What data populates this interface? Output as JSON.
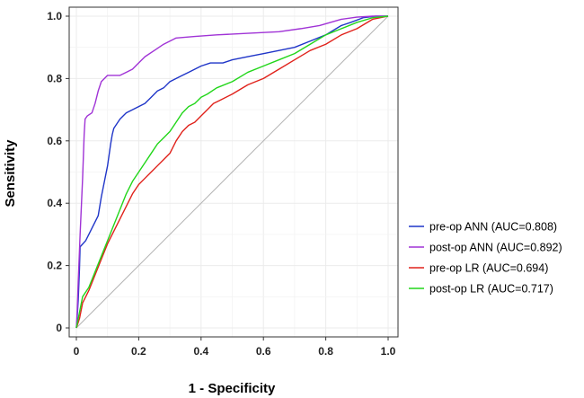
{
  "chart_data": {
    "type": "line",
    "title": "",
    "xlabel": "1 - Specificity",
    "ylabel": "Sensitivity",
    "xlim": [
      0,
      1
    ],
    "ylim": [
      0,
      1
    ],
    "x_ticks": [
      "0",
      "0.2",
      "0.4",
      "0.6",
      "0.8",
      "1.0"
    ],
    "y_ticks": [
      "0",
      "0.2",
      "0.4",
      "0.6",
      "0.8",
      "1.0"
    ],
    "grid": true,
    "legend_position": "right",
    "reference_line": {
      "x": [
        0,
        1
      ],
      "y": [
        0,
        1
      ],
      "color": "#b3b3b3"
    },
    "series": [
      {
        "name": "pre-op ANN (AUC=0.808)",
        "color": "#1f35c8",
        "points": [
          [
            0,
            0
          ],
          [
            0.003,
            0.04
          ],
          [
            0.006,
            0.09
          ],
          [
            0.01,
            0.19
          ],
          [
            0.012,
            0.26
          ],
          [
            0.03,
            0.28
          ],
          [
            0.05,
            0.32
          ],
          [
            0.07,
            0.36
          ],
          [
            0.08,
            0.42
          ],
          [
            0.09,
            0.47
          ],
          [
            0.1,
            0.52
          ],
          [
            0.11,
            0.59
          ],
          [
            0.115,
            0.62
          ],
          [
            0.12,
            0.64
          ],
          [
            0.14,
            0.67
          ],
          [
            0.16,
            0.69
          ],
          [
            0.18,
            0.7
          ],
          [
            0.2,
            0.71
          ],
          [
            0.22,
            0.72
          ],
          [
            0.24,
            0.74
          ],
          [
            0.26,
            0.76
          ],
          [
            0.28,
            0.77
          ],
          [
            0.3,
            0.79
          ],
          [
            0.32,
            0.8
          ],
          [
            0.34,
            0.81
          ],
          [
            0.36,
            0.82
          ],
          [
            0.38,
            0.83
          ],
          [
            0.4,
            0.84
          ],
          [
            0.43,
            0.85
          ],
          [
            0.47,
            0.85
          ],
          [
            0.5,
            0.86
          ],
          [
            0.55,
            0.87
          ],
          [
            0.6,
            0.88
          ],
          [
            0.65,
            0.89
          ],
          [
            0.7,
            0.9
          ],
          [
            0.75,
            0.92
          ],
          [
            0.8,
            0.94
          ],
          [
            0.85,
            0.97
          ],
          [
            0.88,
            0.98
          ],
          [
            0.92,
            0.995
          ],
          [
            0.96,
            1.0
          ],
          [
            1.0,
            1.0
          ]
        ]
      },
      {
        "name": "post-op ANN (AUC=0.892)",
        "color": "#a033d6",
        "points": [
          [
            0,
            0
          ],
          [
            0.003,
            0.06
          ],
          [
            0.006,
            0.15
          ],
          [
            0.01,
            0.25
          ],
          [
            0.012,
            0.3
          ],
          [
            0.02,
            0.48
          ],
          [
            0.025,
            0.62
          ],
          [
            0.028,
            0.67
          ],
          [
            0.035,
            0.68
          ],
          [
            0.05,
            0.69
          ],
          [
            0.06,
            0.72
          ],
          [
            0.07,
            0.76
          ],
          [
            0.08,
            0.79
          ],
          [
            0.09,
            0.8
          ],
          [
            0.1,
            0.81
          ],
          [
            0.14,
            0.81
          ],
          [
            0.16,
            0.82
          ],
          [
            0.18,
            0.83
          ],
          [
            0.2,
            0.85
          ],
          [
            0.22,
            0.87
          ],
          [
            0.25,
            0.89
          ],
          [
            0.28,
            0.91
          ],
          [
            0.32,
            0.93
          ],
          [
            0.38,
            0.935
          ],
          [
            0.45,
            0.94
          ],
          [
            0.55,
            0.945
          ],
          [
            0.65,
            0.95
          ],
          [
            0.72,
            0.96
          ],
          [
            0.78,
            0.97
          ],
          [
            0.85,
            0.99
          ],
          [
            0.9,
            0.997
          ],
          [
            0.95,
            1.0
          ],
          [
            1.0,
            1.0
          ]
        ]
      },
      {
        "name": "pre-op LR (AUC=0.694)",
        "color": "#e0221b",
        "points": [
          [
            0,
            0
          ],
          [
            0.01,
            0.03
          ],
          [
            0.02,
            0.08
          ],
          [
            0.04,
            0.12
          ],
          [
            0.06,
            0.17
          ],
          [
            0.08,
            0.22
          ],
          [
            0.1,
            0.27
          ],
          [
            0.12,
            0.31
          ],
          [
            0.14,
            0.35
          ],
          [
            0.16,
            0.39
          ],
          [
            0.18,
            0.43
          ],
          [
            0.2,
            0.46
          ],
          [
            0.22,
            0.48
          ],
          [
            0.24,
            0.5
          ],
          [
            0.26,
            0.52
          ],
          [
            0.28,
            0.54
          ],
          [
            0.3,
            0.56
          ],
          [
            0.32,
            0.6
          ],
          [
            0.34,
            0.63
          ],
          [
            0.36,
            0.65
          ],
          [
            0.38,
            0.66
          ],
          [
            0.4,
            0.68
          ],
          [
            0.42,
            0.7
          ],
          [
            0.44,
            0.72
          ],
          [
            0.46,
            0.73
          ],
          [
            0.5,
            0.75
          ],
          [
            0.55,
            0.78
          ],
          [
            0.6,
            0.8
          ],
          [
            0.65,
            0.83
          ],
          [
            0.7,
            0.86
          ],
          [
            0.75,
            0.89
          ],
          [
            0.8,
            0.91
          ],
          [
            0.85,
            0.94
          ],
          [
            0.9,
            0.96
          ],
          [
            0.95,
            0.99
          ],
          [
            1.0,
            1.0
          ]
        ]
      },
      {
        "name": "post-op LR (AUC=0.717)",
        "color": "#22d61a",
        "points": [
          [
            0,
            0
          ],
          [
            0.01,
            0.05
          ],
          [
            0.02,
            0.1
          ],
          [
            0.04,
            0.13
          ],
          [
            0.06,
            0.18
          ],
          [
            0.08,
            0.23
          ],
          [
            0.1,
            0.28
          ],
          [
            0.12,
            0.33
          ],
          [
            0.14,
            0.38
          ],
          [
            0.16,
            0.43
          ],
          [
            0.18,
            0.47
          ],
          [
            0.2,
            0.5
          ],
          [
            0.22,
            0.53
          ],
          [
            0.24,
            0.56
          ],
          [
            0.26,
            0.59
          ],
          [
            0.28,
            0.61
          ],
          [
            0.3,
            0.63
          ],
          [
            0.32,
            0.66
          ],
          [
            0.34,
            0.69
          ],
          [
            0.36,
            0.71
          ],
          [
            0.38,
            0.72
          ],
          [
            0.4,
            0.74
          ],
          [
            0.42,
            0.75
          ],
          [
            0.45,
            0.77
          ],
          [
            0.5,
            0.79
          ],
          [
            0.55,
            0.82
          ],
          [
            0.6,
            0.84
          ],
          [
            0.65,
            0.86
          ],
          [
            0.7,
            0.88
          ],
          [
            0.75,
            0.91
          ],
          [
            0.8,
            0.94
          ],
          [
            0.85,
            0.96
          ],
          [
            0.9,
            0.98
          ],
          [
            0.95,
            0.995
          ],
          [
            1.0,
            1.0
          ]
        ]
      }
    ]
  }
}
